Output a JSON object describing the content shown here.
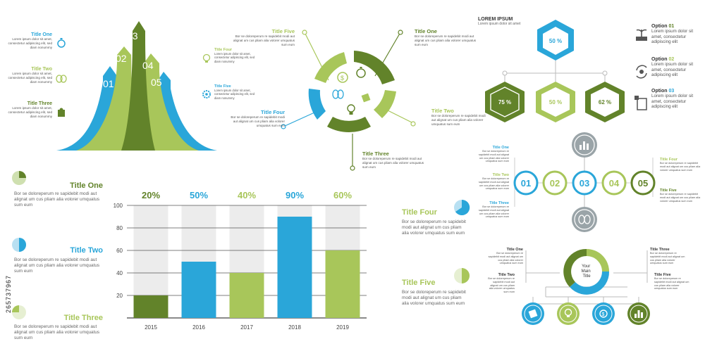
{
  "colors": {
    "green_dark": "#62832a",
    "green_light": "#a8c65a",
    "blue": "#2aa6d9",
    "grey": "#9aa4a8",
    "grey_light": "#ececec",
    "text": "#444444"
  },
  "placeholder_body": "Bor se doloreperum re sapidebit modi aut alignat um cus pliam alia volorer umquatus sum eum",
  "small_body": "Lorem ipsum dolor sit amet, consectetur adipiscing elit, sed diam nonummy",
  "arrows": {
    "numbers": [
      "01",
      "02",
      "03",
      "04",
      "05"
    ],
    "items": [
      {
        "title": "Title One",
        "color": "#2aa6d9",
        "icon": "stopwatch-icon"
      },
      {
        "title": "Title Two",
        "color": "#a8c65a",
        "icon": "brain-icon"
      },
      {
        "title": "Title Three",
        "color": "#62832a",
        "icon": "puzzle-icon"
      }
    ]
  },
  "ring": {
    "labels": [
      {
        "title": "Title One",
        "color": "#62832a"
      },
      {
        "title": "Title Two",
        "color": "#a8c65a"
      },
      {
        "title": "Title Three",
        "color": "#62832a"
      },
      {
        "title": "Title Four",
        "color": "#2aa6d9"
      },
      {
        "title": "Title Five",
        "color": "#a8c65a"
      }
    ],
    "body": "Bor se doloreperum re sapidebit modi aut alignat um cus pliam alia volorer umquatus sum eum",
    "side_items": [
      {
        "title": "Title Four",
        "color": "#a8c65a",
        "icon": "lightbulb-icon"
      },
      {
        "title": "Title Five",
        "color": "#2aa6d9",
        "icon": "gear-icon"
      }
    ],
    "small_body": "Lorem ipsum dolor sit amet, consectetur adipiscing elit, sed diam nonummy"
  },
  "hex": {
    "title": "LOREM IPSUM",
    "subtitle": "Lorem ipsum dolor sit amet",
    "top_value": "50 %",
    "values": [
      "75 %",
      "50 %",
      "62 %"
    ],
    "options": [
      {
        "label": "Option",
        "num": "01",
        "color": "#62832a",
        "text": "Lorem ipsum dolor sit amet, consectetur adipiscing elit",
        "icon": "plant-icon"
      },
      {
        "label": "Option",
        "num": "02",
        "color": "#a8c65a",
        "text": "Lorem ipsum dolor sit amet, consectetur adipiscing elit",
        "icon": "cycle-icon"
      },
      {
        "label": "Option",
        "num": "03",
        "color": "#2aa6d9",
        "text": "Lorem ipsum dolor sit amet, consectetur adipiscing elit",
        "icon": "clipboard-icon"
      }
    ]
  },
  "flow": {
    "numbers": [
      "01",
      "02",
      "03",
      "04",
      "05"
    ],
    "left": [
      {
        "title": "Title One",
        "color": "#2aa6d9"
      },
      {
        "title": "Title Two",
        "color": "#a8c65a"
      },
      {
        "title": "Title Three",
        "color": "#2aa6d9"
      }
    ],
    "right": [
      {
        "title": "Title Four",
        "color": "#a8c65a"
      },
      {
        "title": "Title Five",
        "color": "#62832a"
      }
    ],
    "body": "Bor se doloreperum re sapidebit modi aut alignat um cus pliam alia volorer umquatus sum eum"
  },
  "left_list": [
    {
      "title": "Title One",
      "color": "#62832a"
    },
    {
      "title": "Title Two",
      "color": "#2aa6d9"
    },
    {
      "title": "Title Three",
      "color": "#a8c65a"
    }
  ],
  "mid_list": [
    {
      "title": "Title Four",
      "color": "#a8c65a"
    },
    {
      "title": "Title Five",
      "color": "#a8c65a"
    }
  ],
  "chart_data": {
    "type": "bar",
    "categories": [
      "2015",
      "2016",
      "2017",
      "2018",
      "2019"
    ],
    "values": [
      20,
      50,
      40,
      90,
      60
    ],
    "labels": [
      "20%",
      "50%",
      "40%",
      "90%",
      "60%"
    ],
    "colors": [
      "#62832a",
      "#2aa6d9",
      "#a8c65a",
      "#2aa6d9",
      "#a8c65a"
    ],
    "yticks": [
      20,
      40,
      60,
      80,
      100
    ],
    "ylim": [
      0,
      100
    ],
    "grid": true
  },
  "tree": {
    "center": "Your Main Title",
    "titles": [
      "Title One",
      "Title Two",
      "Title Three",
      "Title Five"
    ],
    "body": "Bor se doloreperum re sapidebit modi aut alignat um cus pliam alia volorer umquatus sum eum",
    "circles": [
      {
        "color": "#2aa6d9",
        "icon": "puzzle-icon"
      },
      {
        "color": "#a8c65a",
        "icon": "lightbulb-icon"
      },
      {
        "color": "#2aa6d9",
        "icon": "dollar-icon"
      },
      {
        "color": "#62832a",
        "icon": "bar-chart-icon"
      }
    ]
  },
  "stamp": "265737967"
}
